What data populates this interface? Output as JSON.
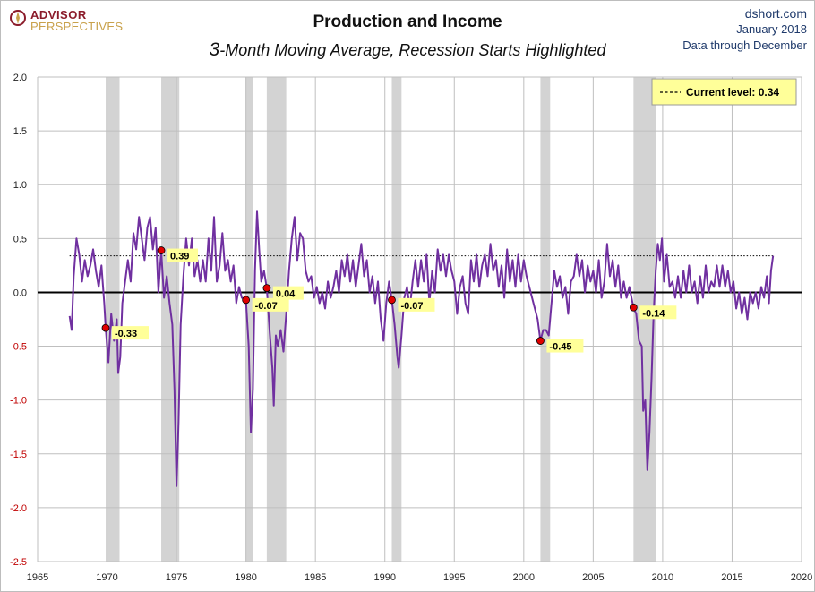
{
  "header": {
    "logo_line1": "ADVISOR",
    "logo_line2": "PERSPECTIVES",
    "title": "Production and Income",
    "subtitle_num": "3",
    "subtitle_rest": "-Month Moving Average, Recession Starts Highlighted",
    "source": "dshort.com",
    "date": "January 2018",
    "data_note": "Data through December"
  },
  "colors": {
    "series": "#7030a0",
    "recession": "#d3d3d3",
    "marker": "#e00000",
    "label_bg": "#ffff99",
    "grid": "#bfbfbf",
    "negative_tick": "#c00000"
  },
  "chart_data": {
    "type": "line",
    "title": "Production and Income",
    "subtitle": "3-Month Moving Average, Recession Starts Highlighted",
    "xlabel": "",
    "ylabel": "",
    "xlim": [
      1965,
      2020
    ],
    "ylim": [
      -2.5,
      2.0
    ],
    "x_ticks": [
      "1965",
      "1970",
      "1975",
      "1980",
      "1985",
      "1990",
      "1995",
      "2000",
      "2005",
      "2010",
      "2015",
      "2020"
    ],
    "y_ticks": [
      "2.0",
      "1.5",
      "1.0",
      "0.5",
      "0.0",
      "-0.5",
      "-1.0",
      "-1.5",
      "-2.0",
      "-2.5"
    ],
    "grid": true,
    "legend": {
      "placement": "top-right",
      "text": "Current level:",
      "value": "0.34"
    },
    "current_level": 0.34,
    "recessions": [
      [
        1969.9,
        1970.9
      ],
      [
        1973.9,
        1975.2
      ],
      [
        1980.0,
        1980.5
      ],
      [
        1981.5,
        1982.9
      ],
      [
        1990.5,
        1991.2
      ],
      [
        2001.2,
        2001.9
      ],
      [
        2007.9,
        2009.5
      ]
    ],
    "recession_start_markers": [
      {
        "x": 1969.9,
        "y": -0.33,
        "label": "-0.33"
      },
      {
        "x": 1973.9,
        "y": 0.39,
        "label": "0.39"
      },
      {
        "x": 1980.0,
        "y": -0.07,
        "label": "-0.07"
      },
      {
        "x": 1981.5,
        "y": 0.04,
        "label": "0.04"
      },
      {
        "x": 1990.5,
        "y": -0.07,
        "label": "-0.07"
      },
      {
        "x": 2001.2,
        "y": -0.45,
        "label": "-0.45"
      },
      {
        "x": 2007.9,
        "y": -0.14,
        "label": "-0.14"
      }
    ],
    "series": [
      {
        "points": [
          [
            1967.3,
            -0.22
          ],
          [
            1967.45,
            -0.35
          ],
          [
            1967.6,
            0.15
          ],
          [
            1967.8,
            0.5
          ],
          [
            1968.0,
            0.35
          ],
          [
            1968.2,
            0.1
          ],
          [
            1968.4,
            0.3
          ],
          [
            1968.6,
            0.15
          ],
          [
            1968.8,
            0.25
          ],
          [
            1969.0,
            0.4
          ],
          [
            1969.2,
            0.2
          ],
          [
            1969.4,
            0.05
          ],
          [
            1969.6,
            0.25
          ],
          [
            1969.8,
            -0.1
          ],
          [
            1969.9,
            -0.33
          ],
          [
            1970.1,
            -0.65
          ],
          [
            1970.3,
            -0.2
          ],
          [
            1970.5,
            -0.45
          ],
          [
            1970.7,
            -0.25
          ],
          [
            1970.8,
            -0.75
          ],
          [
            1970.95,
            -0.6
          ],
          [
            1971.1,
            -0.1
          ],
          [
            1971.3,
            0.1
          ],
          [
            1971.5,
            0.3
          ],
          [
            1971.7,
            0.1
          ],
          [
            1971.9,
            0.55
          ],
          [
            1972.1,
            0.4
          ],
          [
            1972.3,
            0.7
          ],
          [
            1972.5,
            0.5
          ],
          [
            1972.7,
            0.3
          ],
          [
            1972.9,
            0.6
          ],
          [
            1973.1,
            0.7
          ],
          [
            1973.3,
            0.4
          ],
          [
            1973.5,
            0.6
          ],
          [
            1973.7,
            0.0
          ],
          [
            1973.9,
            0.39
          ],
          [
            1974.1,
            -0.05
          ],
          [
            1974.3,
            0.15
          ],
          [
            1974.5,
            -0.1
          ],
          [
            1974.7,
            -0.3
          ],
          [
            1974.85,
            -0.9
          ],
          [
            1975.0,
            -1.8
          ],
          [
            1975.15,
            -1.2
          ],
          [
            1975.3,
            -0.3
          ],
          [
            1975.5,
            0.15
          ],
          [
            1975.7,
            0.5
          ],
          [
            1975.9,
            0.25
          ],
          [
            1976.1,
            0.5
          ],
          [
            1976.3,
            0.15
          ],
          [
            1976.5,
            0.3
          ],
          [
            1976.7,
            0.1
          ],
          [
            1976.9,
            0.3
          ],
          [
            1977.1,
            0.1
          ],
          [
            1977.3,
            0.5
          ],
          [
            1977.5,
            0.2
          ],
          [
            1977.7,
            0.7
          ],
          [
            1977.9,
            0.1
          ],
          [
            1978.1,
            0.25
          ],
          [
            1978.3,
            0.55
          ],
          [
            1978.5,
            0.2
          ],
          [
            1978.7,
            0.3
          ],
          [
            1978.9,
            0.1
          ],
          [
            1979.1,
            0.25
          ],
          [
            1979.3,
            -0.1
          ],
          [
            1979.5,
            0.05
          ],
          [
            1979.7,
            -0.05
          ],
          [
            1980.0,
            -0.07
          ],
          [
            1980.2,
            -0.5
          ],
          [
            1980.35,
            -1.3
          ],
          [
            1980.5,
            -0.9
          ],
          [
            1980.65,
            0.2
          ],
          [
            1980.8,
            0.75
          ],
          [
            1980.95,
            0.4
          ],
          [
            1981.1,
            0.1
          ],
          [
            1981.3,
            0.2
          ],
          [
            1981.5,
            0.04
          ],
          [
            1981.7,
            -0.35
          ],
          [
            1981.9,
            -0.7
          ],
          [
            1982.0,
            -1.05
          ],
          [
            1982.15,
            -0.4
          ],
          [
            1982.3,
            -0.5
          ],
          [
            1982.5,
            -0.35
          ],
          [
            1982.7,
            -0.55
          ],
          [
            1982.9,
            -0.2
          ],
          [
            1983.1,
            0.2
          ],
          [
            1983.3,
            0.5
          ],
          [
            1983.5,
            0.7
          ],
          [
            1983.7,
            0.3
          ],
          [
            1983.9,
            0.55
          ],
          [
            1984.1,
            0.5
          ],
          [
            1984.3,
            0.2
          ],
          [
            1984.5,
            0.1
          ],
          [
            1984.7,
            0.15
          ],
          [
            1984.9,
            -0.05
          ],
          [
            1985.1,
            0.05
          ],
          [
            1985.3,
            -0.1
          ],
          [
            1985.5,
            0.0
          ],
          [
            1985.7,
            -0.15
          ],
          [
            1985.9,
            0.1
          ],
          [
            1986.1,
            -0.05
          ],
          [
            1986.3,
            0.05
          ],
          [
            1986.5,
            0.2
          ],
          [
            1986.7,
            0.0
          ],
          [
            1986.9,
            0.3
          ],
          [
            1987.1,
            0.15
          ],
          [
            1987.3,
            0.35
          ],
          [
            1987.5,
            0.1
          ],
          [
            1987.7,
            0.3
          ],
          [
            1987.9,
            0.05
          ],
          [
            1988.1,
            0.25
          ],
          [
            1988.3,
            0.45
          ],
          [
            1988.5,
            0.15
          ],
          [
            1988.7,
            0.3
          ],
          [
            1988.9,
            0.0
          ],
          [
            1989.1,
            0.15
          ],
          [
            1989.3,
            -0.1
          ],
          [
            1989.5,
            0.1
          ],
          [
            1989.7,
            -0.25
          ],
          [
            1989.9,
            -0.45
          ],
          [
            1990.1,
            -0.1
          ],
          [
            1990.3,
            0.1
          ],
          [
            1990.5,
            -0.07
          ],
          [
            1990.7,
            -0.3
          ],
          [
            1990.9,
            -0.6
          ],
          [
            1991.0,
            -0.7
          ],
          [
            1991.2,
            -0.4
          ],
          [
            1991.4,
            -0.05
          ],
          [
            1991.6,
            0.05
          ],
          [
            1991.8,
            -0.15
          ],
          [
            1992.0,
            0.1
          ],
          [
            1992.2,
            0.3
          ],
          [
            1992.4,
            0.05
          ],
          [
            1992.6,
            0.3
          ],
          [
            1992.8,
            0.1
          ],
          [
            1993.0,
            0.35
          ],
          [
            1993.2,
            -0.1
          ],
          [
            1993.4,
            0.2
          ],
          [
            1993.6,
            0.0
          ],
          [
            1993.8,
            0.4
          ],
          [
            1994.0,
            0.2
          ],
          [
            1994.2,
            0.35
          ],
          [
            1994.4,
            0.15
          ],
          [
            1994.6,
            0.35
          ],
          [
            1994.8,
            0.2
          ],
          [
            1995.0,
            0.1
          ],
          [
            1995.2,
            -0.2
          ],
          [
            1995.4,
            0.05
          ],
          [
            1995.6,
            0.15
          ],
          [
            1995.8,
            -0.1
          ],
          [
            1996.0,
            -0.2
          ],
          [
            1996.2,
            0.3
          ],
          [
            1996.4,
            0.1
          ],
          [
            1996.6,
            0.35
          ],
          [
            1996.8,
            0.05
          ],
          [
            1997.0,
            0.25
          ],
          [
            1997.2,
            0.35
          ],
          [
            1997.4,
            0.15
          ],
          [
            1997.6,
            0.45
          ],
          [
            1997.8,
            0.2
          ],
          [
            1998.0,
            0.3
          ],
          [
            1998.2,
            0.05
          ],
          [
            1998.4,
            0.25
          ],
          [
            1998.6,
            -0.05
          ],
          [
            1998.8,
            0.4
          ],
          [
            1999.0,
            0.1
          ],
          [
            1999.2,
            0.3
          ],
          [
            1999.4,
            0.05
          ],
          [
            1999.6,
            0.35
          ],
          [
            1999.8,
            0.1
          ],
          [
            2000.0,
            0.3
          ],
          [
            2000.2,
            0.15
          ],
          [
            2000.4,
            0.05
          ],
          [
            2000.6,
            -0.05
          ],
          [
            2000.8,
            -0.15
          ],
          [
            2001.0,
            -0.25
          ],
          [
            2001.2,
            -0.45
          ],
          [
            2001.4,
            -0.35
          ],
          [
            2001.6,
            -0.35
          ],
          [
            2001.8,
            -0.4
          ],
          [
            2002.0,
            -0.1
          ],
          [
            2002.2,
            0.2
          ],
          [
            2002.4,
            0.05
          ],
          [
            2002.6,
            0.15
          ],
          [
            2002.8,
            -0.05
          ],
          [
            2003.0,
            0.05
          ],
          [
            2003.2,
            -0.2
          ],
          [
            2003.4,
            0.1
          ],
          [
            2003.6,
            0.15
          ],
          [
            2003.8,
            0.35
          ],
          [
            2004.0,
            0.15
          ],
          [
            2004.2,
            0.3
          ],
          [
            2004.4,
            0.0
          ],
          [
            2004.6,
            0.25
          ],
          [
            2004.8,
            0.1
          ],
          [
            2005.0,
            0.2
          ],
          [
            2005.2,
            0.0
          ],
          [
            2005.4,
            0.3
          ],
          [
            2005.6,
            -0.05
          ],
          [
            2005.8,
            0.1
          ],
          [
            2006.0,
            0.45
          ],
          [
            2006.2,
            0.15
          ],
          [
            2006.4,
            0.3
          ],
          [
            2006.6,
            0.05
          ],
          [
            2006.8,
            0.25
          ],
          [
            2007.0,
            -0.05
          ],
          [
            2007.2,
            0.1
          ],
          [
            2007.4,
            -0.05
          ],
          [
            2007.6,
            0.05
          ],
          [
            2007.9,
            -0.14
          ],
          [
            2008.1,
            -0.2
          ],
          [
            2008.3,
            -0.45
          ],
          [
            2008.5,
            -0.5
          ],
          [
            2008.6,
            -1.1
          ],
          [
            2008.75,
            -1.0
          ],
          [
            2008.9,
            -1.65
          ],
          [
            2009.05,
            -1.3
          ],
          [
            2009.2,
            -0.8
          ],
          [
            2009.35,
            -0.2
          ],
          [
            2009.5,
            0.2
          ],
          [
            2009.65,
            0.45
          ],
          [
            2009.8,
            0.3
          ],
          [
            2009.95,
            0.5
          ],
          [
            2010.1,
            0.1
          ],
          [
            2010.3,
            0.35
          ],
          [
            2010.5,
            0.05
          ],
          [
            2010.7,
            0.1
          ],
          [
            2010.9,
            -0.05
          ],
          [
            2011.1,
            0.15
          ],
          [
            2011.3,
            -0.05
          ],
          [
            2011.5,
            0.2
          ],
          [
            2011.7,
            0.0
          ],
          [
            2011.9,
            0.25
          ],
          [
            2012.1,
            0.0
          ],
          [
            2012.3,
            0.1
          ],
          [
            2012.5,
            -0.1
          ],
          [
            2012.7,
            0.15
          ],
          [
            2012.9,
            -0.05
          ],
          [
            2013.1,
            0.25
          ],
          [
            2013.3,
            0.0
          ],
          [
            2013.5,
            0.1
          ],
          [
            2013.7,
            0.05
          ],
          [
            2013.9,
            0.25
          ],
          [
            2014.1,
            0.05
          ],
          [
            2014.3,
            0.25
          ],
          [
            2014.5,
            0.05
          ],
          [
            2014.7,
            0.2
          ],
          [
            2014.9,
            0.0
          ],
          [
            2015.1,
            0.1
          ],
          [
            2015.3,
            -0.15
          ],
          [
            2015.5,
            0.0
          ],
          [
            2015.7,
            -0.2
          ],
          [
            2015.9,
            -0.05
          ],
          [
            2016.1,
            -0.25
          ],
          [
            2016.3,
            0.0
          ],
          [
            2016.5,
            -0.1
          ],
          [
            2016.7,
            0.0
          ],
          [
            2016.9,
            -0.15
          ],
          [
            2017.1,
            0.05
          ],
          [
            2017.3,
            -0.05
          ],
          [
            2017.5,
            0.15
          ],
          [
            2017.65,
            -0.1
          ],
          [
            2017.8,
            0.2
          ],
          [
            2017.95,
            0.34
          ]
        ]
      }
    ]
  }
}
